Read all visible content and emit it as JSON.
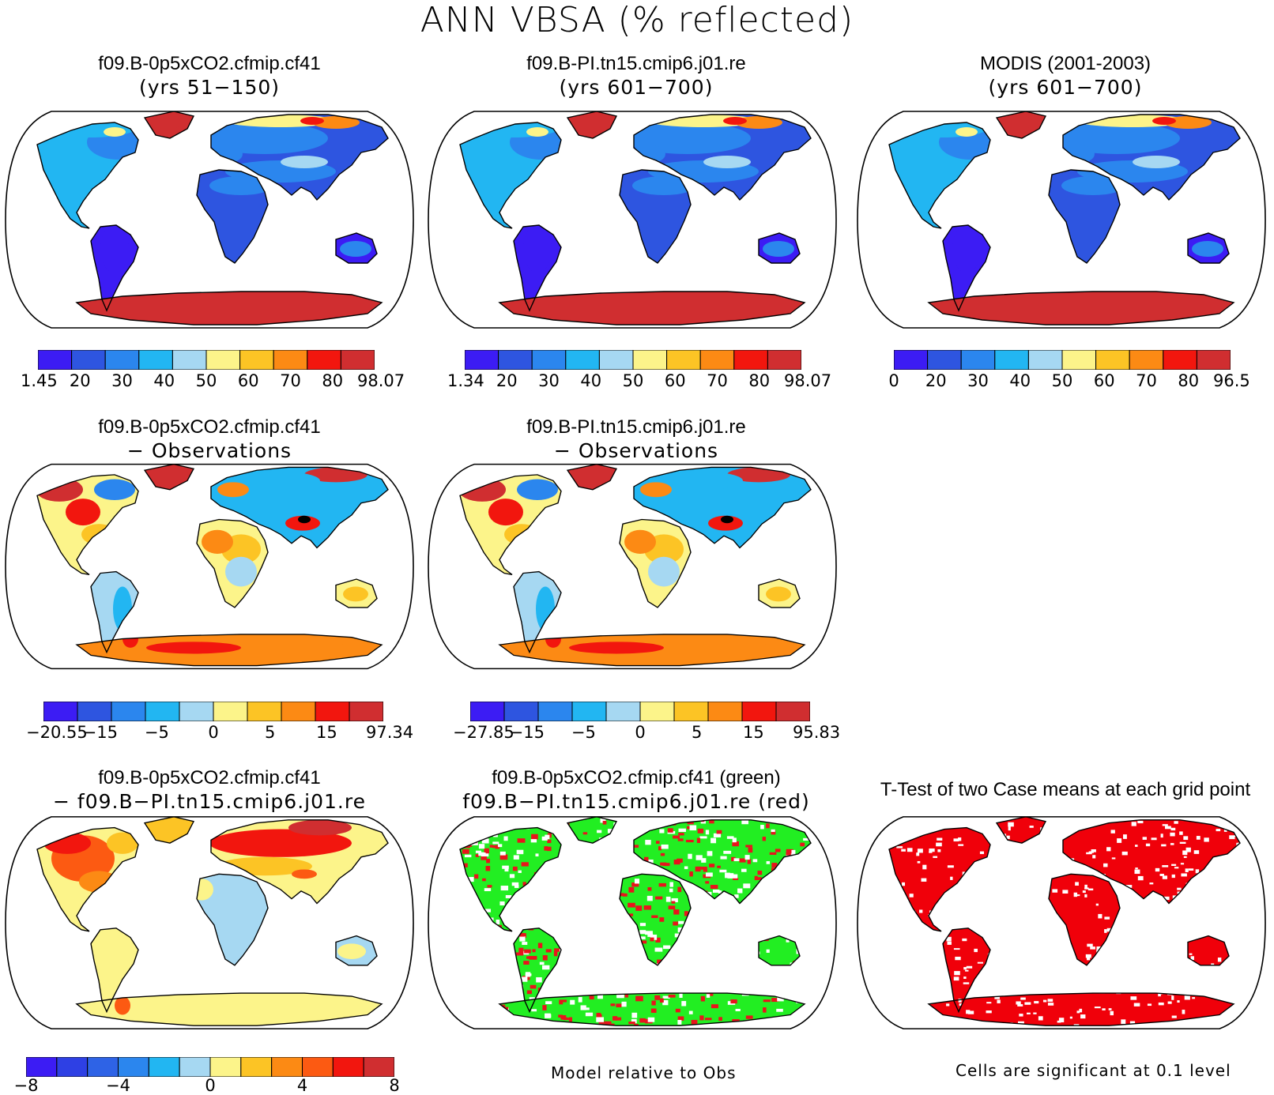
{
  "title": "ANN VBSA (% reflected)",
  "colors": {
    "scale": [
      "#3c1cf4",
      "#2e55e0",
      "#2b86ee",
      "#22b6f2",
      "#a6d8f2",
      "#fcf48a",
      "#fcc425",
      "#fc8a14",
      "#f2160e",
      "#d02e30"
    ],
    "diff_scale": [
      "#3c1cf4",
      "#2e40e4",
      "#2e63e6",
      "#2b86ee",
      "#22b6f2",
      "#a6d8f2",
      "#fcf48a",
      "#fcc425",
      "#fc8a14",
      "#fc5a12",
      "#f2160e",
      "#d02e30"
    ],
    "sig_model": "#22ee22",
    "sig_ref": "#e8141c",
    "ttest": "#f0000a",
    "ocean": "#ffffff",
    "coast": "#000000"
  },
  "panels": [
    {
      "id": "p1",
      "line1": "f09.B-0p5xCO2.cfmip.cf41",
      "line2": "(yrs 51−150)",
      "type": "field",
      "labels": [
        "1.45",
        "20",
        "30",
        "40",
        "50",
        "60",
        "70",
        "80",
        "98.07"
      ]
    },
    {
      "id": "p2",
      "line1": "f09.B-PI.tn15.cmip6.j01.re",
      "line2": "(yrs 601−700)",
      "type": "field",
      "labels": [
        "1.34",
        "20",
        "30",
        "40",
        "50",
        "60",
        "70",
        "80",
        "98.07"
      ]
    },
    {
      "id": "p3",
      "line1": "MODIS (2001-2003)",
      "line2": "(yrs 601−700)",
      "type": "field",
      "labels": [
        "0",
        "20",
        "30",
        "40",
        "50",
        "60",
        "70",
        "80",
        "96.5"
      ]
    },
    {
      "id": "p4",
      "line1": "f09.B-0p5xCO2.cfmip.cf41",
      "line2": "− Observations",
      "type": "obsdiff",
      "labels": [
        "−20.55",
        "−15",
        "−5",
        "0",
        "5",
        "15",
        "97.34"
      ]
    },
    {
      "id": "p5",
      "line1": "f09.B-PI.tn15.cmip6.j01.re",
      "line2": "− Observations",
      "type": "obsdiff",
      "labels": [
        "−27.85",
        "−15",
        "−5",
        "0",
        "5",
        "15",
        "95.83"
      ]
    },
    {
      "id": "p6",
      "line1": "f09.B-0p5xCO2.cfmip.cf41",
      "line2": "− f09.B−PI.tn15.cmip6.j01.re",
      "type": "casediff",
      "labels": [
        "−8",
        "−4",
        "0",
        "4",
        "8"
      ]
    },
    {
      "id": "p7",
      "line1": "f09.B-0p5xCO2.cfmip.cf41 (green)",
      "line2": "f09.B−PI.tn15.cmip6.j01.re (red)",
      "type": "sig"
    },
    {
      "id": "p8",
      "line1": "",
      "line2": "T-Test of two Case means at each grid point",
      "type": "ttest"
    }
  ],
  "notes": {
    "model_relative": "Model relative to Obs",
    "cells_significant": "Cells are significant at 0.1 level"
  }
}
